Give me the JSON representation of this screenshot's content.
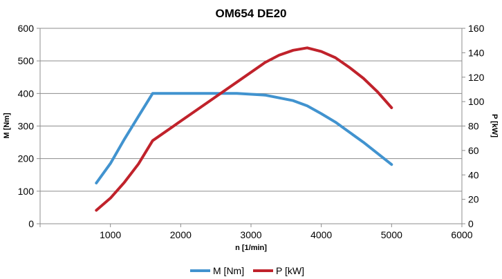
{
  "chart_data": {
    "type": "line",
    "title": "OM654 DE20",
    "xlabel": "n [1/min]",
    "ylabel": "M [Nm]",
    "y2label": "P [kW]",
    "xlim": [
      0,
      6000
    ],
    "ylim": [
      0,
      600
    ],
    "y2lim": [
      0,
      160
    ],
    "xticks": [
      1000,
      2000,
      3000,
      4000,
      5000,
      6000
    ],
    "yticks": [
      0,
      100,
      200,
      300,
      400,
      500,
      600
    ],
    "y2ticks": [
      0,
      20,
      40,
      60,
      80,
      100,
      120,
      140,
      160
    ],
    "grid": "horizontal",
    "legend": "bottom",
    "series": [
      {
        "name": "M [Nm]",
        "axis": "left",
        "color": "#4193cf",
        "x": [
          800,
          1000,
          1200,
          1400,
          1600,
          2000,
          2400,
          2800,
          3200,
          3600,
          3800,
          4000,
          4200,
          4600,
          5000
        ],
        "values": [
          125,
          185,
          260,
          330,
          400,
          400,
          400,
          400,
          395,
          378,
          362,
          338,
          312,
          250,
          182
        ]
      },
      {
        "name": "P [kW]",
        "axis": "right",
        "color": "#c0222b",
        "x": [
          800,
          1000,
          1200,
          1400,
          1600,
          2000,
          2400,
          2800,
          3200,
          3400,
          3600,
          3800,
          4000,
          4200,
          4400,
          4600,
          4800,
          5000
        ],
        "values": [
          11,
          21,
          34,
          49,
          68,
          84,
          100,
          116,
          132,
          138,
          142,
          144,
          141,
          136,
          128,
          119,
          108,
          95
        ]
      }
    ]
  }
}
